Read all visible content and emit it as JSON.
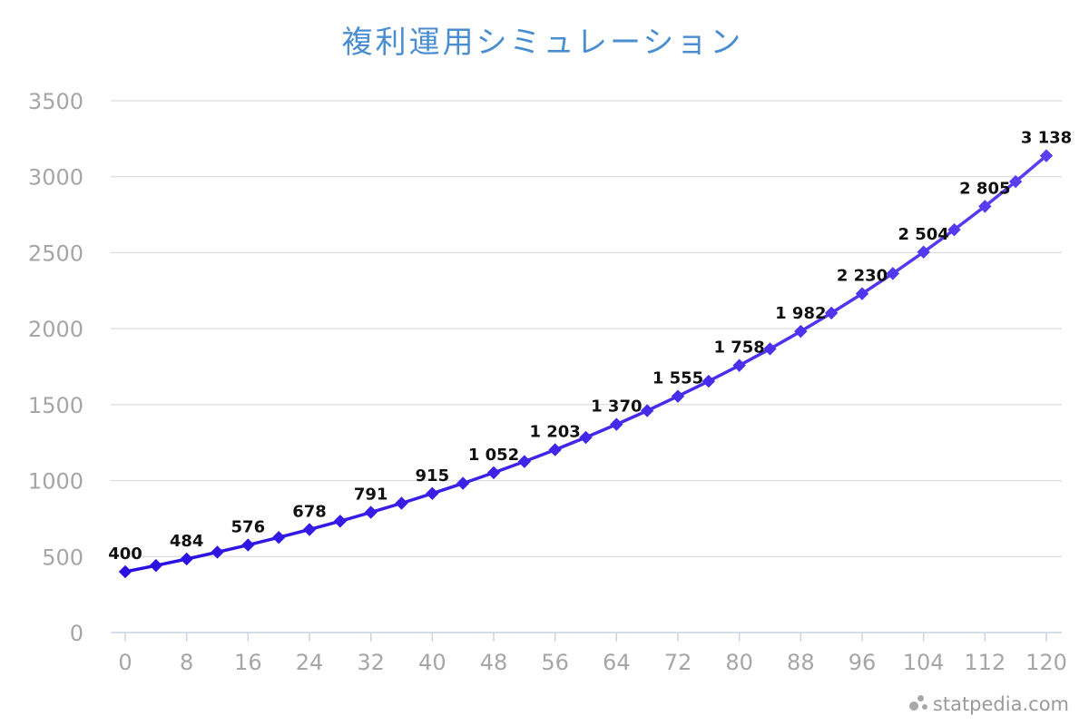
{
  "chart_data": {
    "type": "line",
    "title": "複利運用シミュレーション",
    "xlabel": "",
    "ylabel": "",
    "x": [
      0,
      4,
      8,
      12,
      16,
      20,
      24,
      28,
      32,
      36,
      40,
      44,
      48,
      52,
      56,
      60,
      64,
      68,
      72,
      76,
      80,
      84,
      88,
      92,
      96,
      100,
      104,
      108,
      112,
      116,
      120
    ],
    "series": [
      {
        "name": "",
        "values": [
          400,
          441,
          484,
          529,
          576,
          626,
          678,
          733,
          791,
          851,
          915,
          982,
          1052,
          1125,
          1203,
          1284,
          1370,
          1460,
          1555,
          1654,
          1758,
          1867,
          1982,
          2103,
          2230,
          2363,
          2504,
          2651,
          2805,
          2968,
          3138
        ]
      }
    ],
    "data_labels": [
      {
        "x": 0,
        "text": "400"
      },
      {
        "x": 8,
        "text": "484"
      },
      {
        "x": 16,
        "text": "576"
      },
      {
        "x": 24,
        "text": "678"
      },
      {
        "x": 32,
        "text": "791"
      },
      {
        "x": 40,
        "text": "915"
      },
      {
        "x": 48,
        "text": "1 052"
      },
      {
        "x": 56,
        "text": "1 203"
      },
      {
        "x": 64,
        "text": "1 370"
      },
      {
        "x": 72,
        "text": "1 555"
      },
      {
        "x": 80,
        "text": "1 758"
      },
      {
        "x": 88,
        "text": "1 982"
      },
      {
        "x": 96,
        "text": "2 230"
      },
      {
        "x": 104,
        "text": "2 504"
      },
      {
        "x": 112,
        "text": "2 805"
      },
      {
        "x": 120,
        "text": "3 138"
      }
    ],
    "x_ticks": [
      0,
      8,
      16,
      24,
      32,
      40,
      48,
      56,
      64,
      72,
      80,
      88,
      96,
      104,
      112,
      120
    ],
    "y_ticks": [
      0,
      500,
      1000,
      1500,
      2000,
      2500,
      3000,
      3500
    ],
    "xlim": [
      0,
      120
    ],
    "ylim": [
      0,
      3500
    ],
    "grid": true,
    "legend": "none",
    "line_color_start": "#2a10e0",
    "line_color_end": "#5a40f0"
  },
  "watermark": "statpedia.com"
}
